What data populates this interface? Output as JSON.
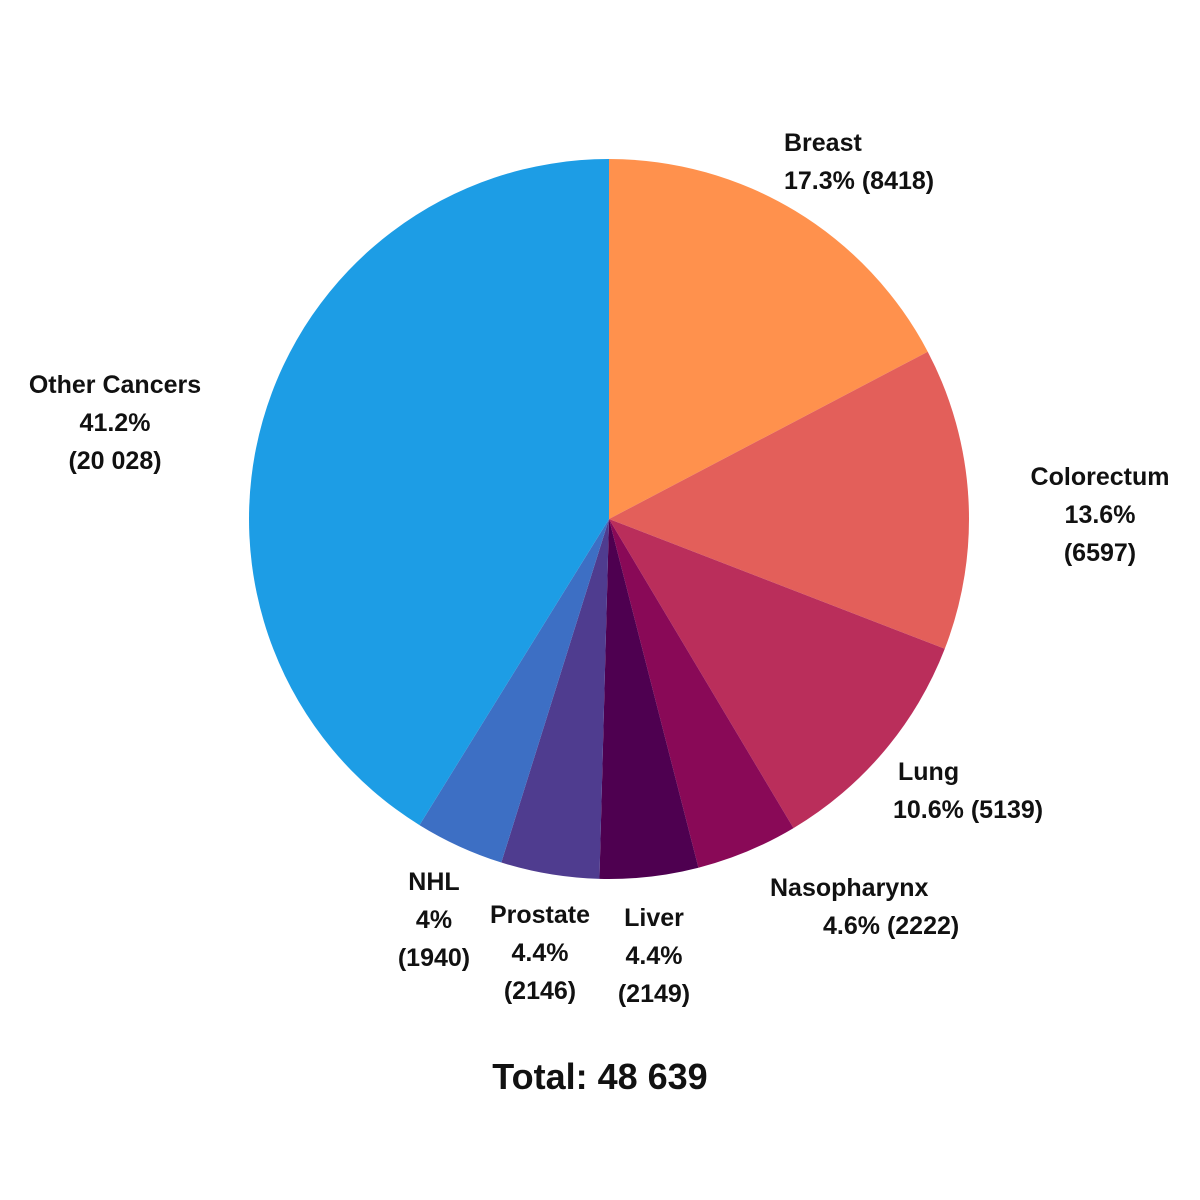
{
  "chart_data": {
    "type": "pie",
    "slices": [
      {
        "label": "Breast",
        "percent_text": "17.3%",
        "count_text": "(8418)",
        "value": 8418,
        "color": "#FF914D"
      },
      {
        "label": "Colorectum",
        "percent_text": "13.6%",
        "count_text": "(6597)",
        "value": 6597,
        "color": "#E35F5A"
      },
      {
        "label": "Lung",
        "percent_text": "10.6%",
        "count_text": "(5139)",
        "value": 5139,
        "color": "#BA2E5B"
      },
      {
        "label": "Nasopharynx",
        "percent_text": "4.6%",
        "count_text": "(2222)",
        "value": 2222,
        "color": "#890957"
      },
      {
        "label": "Liver",
        "percent_text": "4.4%",
        "count_text": "(2149)",
        "value": 2149,
        "color": "#4E0050"
      },
      {
        "label": "Prostate",
        "percent_text": "4.4%",
        "count_text": "(2146)",
        "value": 2146,
        "color": "#4F3C8F"
      },
      {
        "label": "NHL",
        "percent_text": "4%",
        "count_text": "(1940)",
        "value": 1940,
        "color": "#3D6FC4"
      },
      {
        "label": "Other Cancers",
        "percent_text": "41.2%",
        "count_text": "(20 028)",
        "value": 20028,
        "color": "#1D9DE5"
      }
    ],
    "total_label": "Total: 48 639",
    "start_angle": "12 o'clock",
    "direction": "clockwise"
  }
}
